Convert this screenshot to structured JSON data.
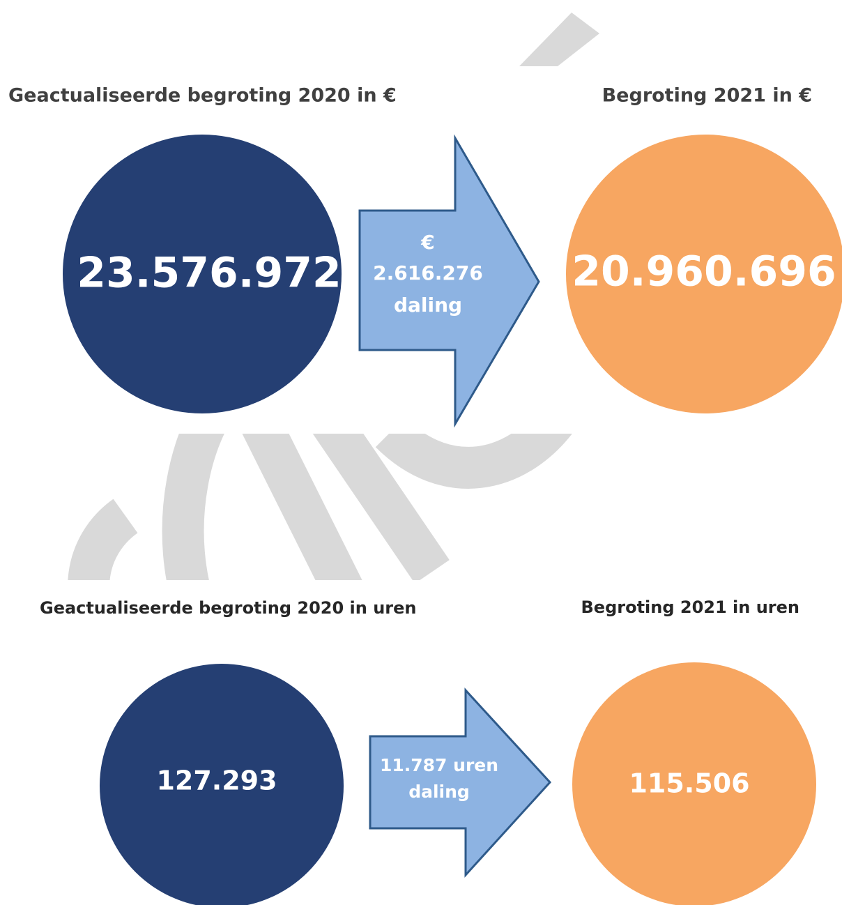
{
  "sections": [
    {
      "left": {
        "title": "Geactualiseerde begroting 2020 in €",
        "value": "23.576.972"
      },
      "arrow": {
        "lines": [
          "€",
          "2.616.276",
          "daling"
        ]
      },
      "right": {
        "title": "Begroting 2021 in €",
        "value": "20.960.696"
      }
    },
    {
      "left": {
        "title": "Geactualiseerde begroting 2020 in uren",
        "value": "127.293"
      },
      "arrow": {
        "lines": [
          "11.787 uren",
          "daling"
        ]
      },
      "right": {
        "title": "Begroting 2021 in uren",
        "value": "115.506"
      }
    }
  ]
}
